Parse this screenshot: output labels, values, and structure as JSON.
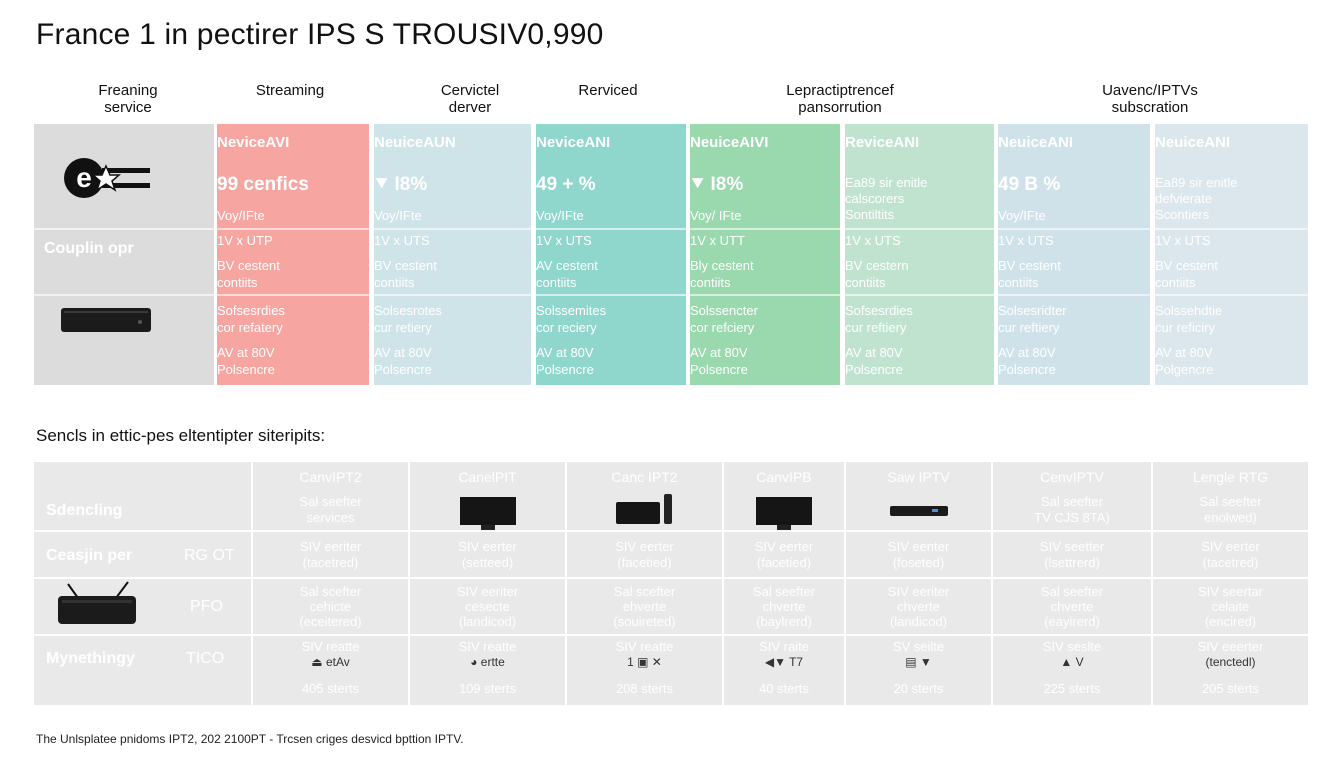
{
  "page_title": "France 1 in pectirer IPS S TROUSIV0,990",
  "top_headers": [
    "Freaning\nservice",
    "Streaming",
    "Cervictel\nderver",
    "Rerviced",
    "Lepractiptrencef\npansorrution",
    "Uavenc/IPTVs\nsubscration"
  ],
  "top_side": {
    "logo_text": "e",
    "row2_label": "Couplin opr"
  },
  "top_columns": [
    {
      "head": "NeviceAVI",
      "big": "99 cenfics",
      "l1": "Voy/IFte",
      "l2": "1V x UTP",
      "l3a": "BV cestent",
      "l3b": "contiits",
      "l4a": "Sofsesrdies",
      "l4b": "cor refatery",
      "l5a": "AV at 80V",
      "l5b": "Polsencre",
      "color": "#f7a5a0",
      "big_small": false
    },
    {
      "head": "NeuiceAUN",
      "big": "⯆ I8%",
      "l1": "Voy/IFte",
      "l2": "1V x UTS",
      "l3a": "BV cestent",
      "l3b": "contiits",
      "l4a": "Solsesrotes",
      "l4b": "cur retiery",
      "l5a": "AV at 80V",
      "l5b": "Polsencre",
      "color": "#cfe4e8",
      "big_small": false
    },
    {
      "head": "NeviceANI",
      "big": "49 + %",
      "l1": "Voy/IFte",
      "l2": "1V x UTS",
      "l3a": "AV cestent",
      "l3b": "contiits",
      "l4a": "Solssemites",
      "l4b": "cor reciery",
      "l5a": "AV at 80V",
      "l5b": "Polsencre",
      "color": "#8fd6cc",
      "big_small": false
    },
    {
      "head": "NeuiceAIVI",
      "big": "⯆ I8%",
      "l1": "Voy/ IFte",
      "l2": "1V x UTT",
      "l3a": "Bly cestent",
      "l3b": "contiits",
      "l4a": "Solssencter",
      "l4b": "cor refciery",
      "l5a": "AV at 80V",
      "l5b": "Polsencre",
      "color": "#9ad8ae",
      "big_small": false
    },
    {
      "head": "ReviceANI",
      "big": "Ea89 sir enitle\ncalscorers\nSontiltits",
      "l1": "",
      "l2": "1V x UTS",
      "l3a": "BV cestern",
      "l3b": "contiits",
      "l4a": "Sofsesrdies",
      "l4b": "cur reftiery",
      "l5a": "AV at 80V",
      "l5b": "Polsencre",
      "color": "#bfe3cf",
      "big_small": true
    },
    {
      "head": "NeuiceANI",
      "big": "49 B %",
      "l1": "Voy/IFte",
      "l2": "1V x UTS",
      "l3a": "BV cestent",
      "l3b": "contiits",
      "l4a": "Solsesridter",
      "l4b": "cur reftiery",
      "l5a": "AV at 80V",
      "l5b": "Polsencre",
      "color": "#cfe2ea",
      "big_small": false
    },
    {
      "head": "NeuiceANI",
      "big": "Ea89 sir enitle\ndefvierate\nScontiers",
      "l1": "",
      "l2": "1V x UTS",
      "l3a": "BV cestent",
      "l3b": "contiits",
      "l4a": "Solssehdtie",
      "l4b": "cur reficiry",
      "l5a": "AV at 80V",
      "l5b": "Polgencre",
      "color": "#dbe7ec",
      "big_small": true
    }
  ],
  "section_title": "Sencls in ettic-pes eltentipter siteripits:",
  "bottom_side": {
    "row1": "Sdencling",
    "row2a": "Ceasjin per",
    "row2b": "RG OT",
    "row3b": "PFO",
    "row4a": "Mynethingy",
    "row4b": "TICO"
  },
  "bottom_columns": [
    {
      "head": "CanvIPT2",
      "r1a": "Sal seefter",
      "r1b": "services",
      "r2a": "SIV eeriter",
      "r2b": "(tacetred)",
      "r3a": "Sal scefter",
      "r3b": "cehicte",
      "r3c": "(eceitered)",
      "r4a": "SIV reatte",
      "r4g": "⏏ etAv",
      "r5": "405 sterts"
    },
    {
      "head": "CanelPIT",
      "r1a": "",
      "r1b": "",
      "r2a": "SIV eerter",
      "r2b": "(setteed)",
      "r3a": "SIV eeriter",
      "r3b": "cesecte",
      "r3c": "(landicod)",
      "r4a": "SIV reatte",
      "r4g": "◕ ertte",
      "r5": "109 sterts"
    },
    {
      "head": "Canc IPT2",
      "r1a": "",
      "r1b": "",
      "r2a": "SIV eerter",
      "r2b": "(facetied)",
      "r3a": "Sal scefter",
      "r3b": "ehverte",
      "r3c": "(souireted)",
      "r4a": "SIV reatte",
      "r4g": "1 ▣ ✕",
      "r5": "208 sterts"
    },
    {
      "head": "CanvIPB",
      "r1a": "",
      "r1b": "",
      "r2a": "SIV eerter",
      "r2b": "(facetied)",
      "r3a": "Sal seefter",
      "r3b": "chverte",
      "r3c": "(baylrerd)",
      "r4a": "SIV raite",
      "r4g": "◀▼ T7",
      "r5": "40 sterts"
    },
    {
      "head": "Saw IPTV",
      "r1a": "",
      "r1b": "",
      "r2a": "SIV eenter",
      "r2b": "(foseted)",
      "r3a": "SIV eeriter",
      "r3b": "chverte",
      "r3c": "(landicod)",
      "r4a": "SV seilte",
      "r4g": "▤ ▼",
      "r5": "20 sterts"
    },
    {
      "head": "CenvIPTV",
      "r1a": "Sal seefter",
      "r1b": "TV CJS 8TA)",
      "r2a": "SIV seetter",
      "r2b": "(lsettrerd)",
      "r3a": "Sal seefter",
      "r3b": "chverte",
      "r3c": "(eayirerd)",
      "r4a": "SIV seslte",
      "r4g": "▲ V",
      "r5": "225 sterts"
    },
    {
      "head": "Lengle RTG",
      "r1a": "Sal seefter",
      "r1b": "enolwed)",
      "r2a": "SIV eerter",
      "r2b": "(tacetred)",
      "r3a": "SIV seertar",
      "r3b": "celaite",
      "r3c": "(encired)",
      "r4a": "SIV eeerter",
      "r4g": "(tenctedl)",
      "r5": "205 sterts"
    }
  ],
  "footer": "The Unlsplatee pnidoms IPT2, 202 2100PT - Trcsen criges  desvicd bpttion IPTV."
}
